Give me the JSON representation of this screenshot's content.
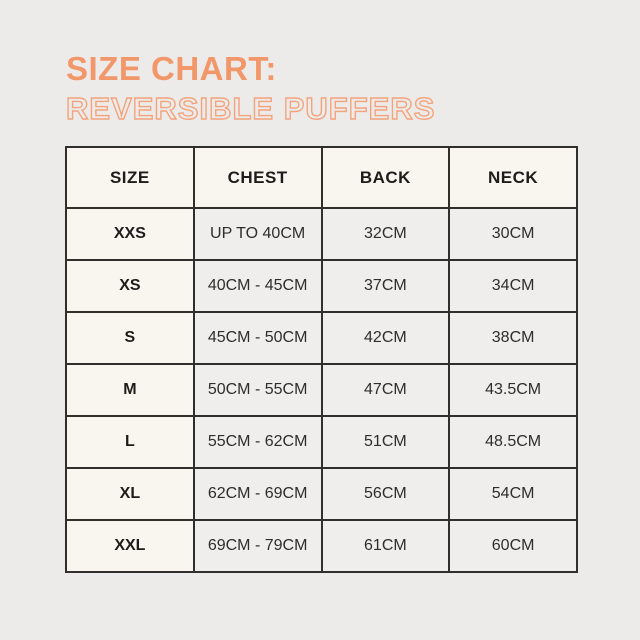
{
  "page": {
    "background_color": "#ECEBE9",
    "border_color": "#302F2B"
  },
  "header": {
    "title": "SIZE CHART:",
    "subtitle": "REVERSIBLE PUFFERS",
    "title_color": "#F2976A",
    "subtitle_outline_color": "#F3A47D"
  },
  "table": {
    "columns": [
      "SIZE",
      "CHEST",
      "BACK",
      "NECK"
    ],
    "header_background": "#F9F6EF",
    "size_column_background": "#F9F6EF",
    "value_cell_background": "#EFEEEC",
    "rows": [
      [
        "XXS",
        "UP TO 40CM",
        "32CM",
        "30CM"
      ],
      [
        "XS",
        "40CM - 45CM",
        "37CM",
        "34CM"
      ],
      [
        "S",
        "45CM - 50CM",
        "42CM",
        "38CM"
      ],
      [
        "M",
        "50CM - 55CM",
        "47CM",
        "43.5CM"
      ],
      [
        "L",
        "55CM - 62CM",
        "51CM",
        "48.5CM"
      ],
      [
        "XL",
        "62CM - 69CM",
        "56CM",
        "54CM"
      ],
      [
        "XXL",
        "69CM - 79CM",
        "61CM",
        "60CM"
      ]
    ]
  }
}
